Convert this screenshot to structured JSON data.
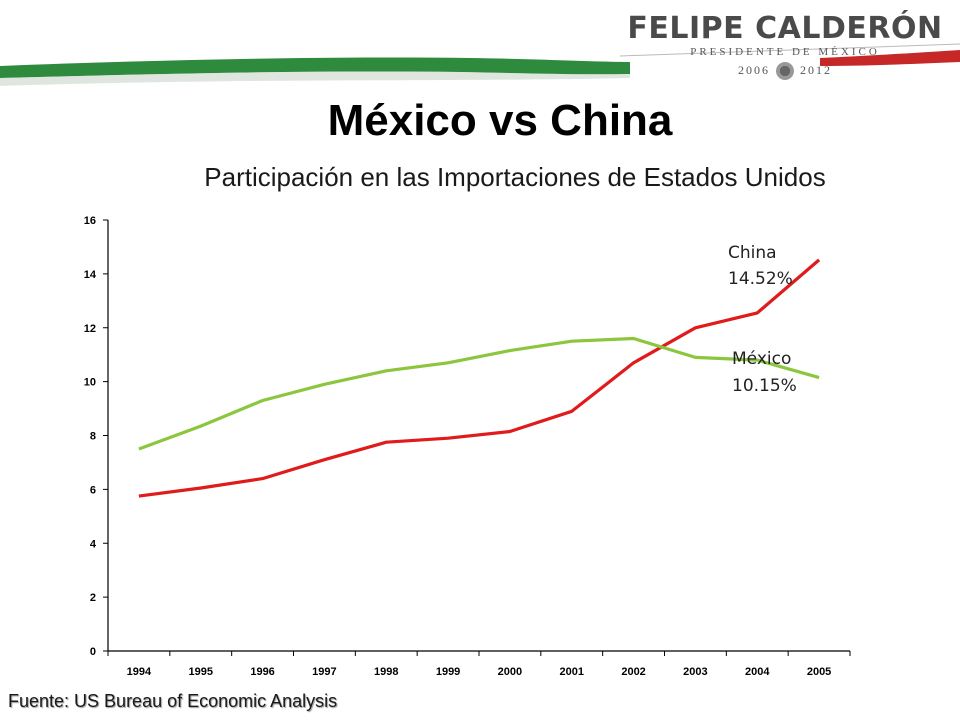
{
  "header": {
    "brand_name": "FELIPE CALDERÓN",
    "brand_subtitle": "PRESIDENTE DE MÉXICO",
    "years_start": "2006",
    "years_end": "2012",
    "colors": {
      "green": "#2e8b3e",
      "red": "#c62828"
    }
  },
  "source": "Fuente: US Bureau of Economic Analysis",
  "chart_data": {
    "type": "line",
    "title": "México vs China",
    "subtitle": "Participación en las Importaciones de Estados Unidos",
    "xlabel": "",
    "ylabel": "",
    "x": [
      "1994",
      "1995",
      "1996",
      "1997",
      "1998",
      "1999",
      "2000",
      "2001",
      "2002",
      "2003",
      "2004",
      "2005"
    ],
    "ylim": [
      0,
      16
    ],
    "yticks": [
      "0",
      "2",
      "4",
      "6",
      "8",
      "10",
      "12",
      "14",
      "16"
    ],
    "grid": false,
    "legend": "none",
    "series": [
      {
        "name": "China",
        "color": "#e01b1b",
        "values": [
          5.75,
          6.05,
          6.4,
          7.1,
          7.75,
          7.9,
          8.15,
          8.9,
          10.7,
          12.0,
          12.55,
          14.52
        ]
      },
      {
        "name": "México",
        "color": "#8cc63f",
        "values": [
          7.5,
          8.35,
          9.3,
          9.9,
          10.4,
          10.7,
          11.15,
          11.5,
          11.6,
          10.9,
          10.8,
          10.15
        ]
      }
    ],
    "annotations": [
      {
        "series": "China",
        "line1": "China",
        "line2": "14.52%"
      },
      {
        "series": "México",
        "line1": "México",
        "line2": "10.15%"
      }
    ]
  }
}
